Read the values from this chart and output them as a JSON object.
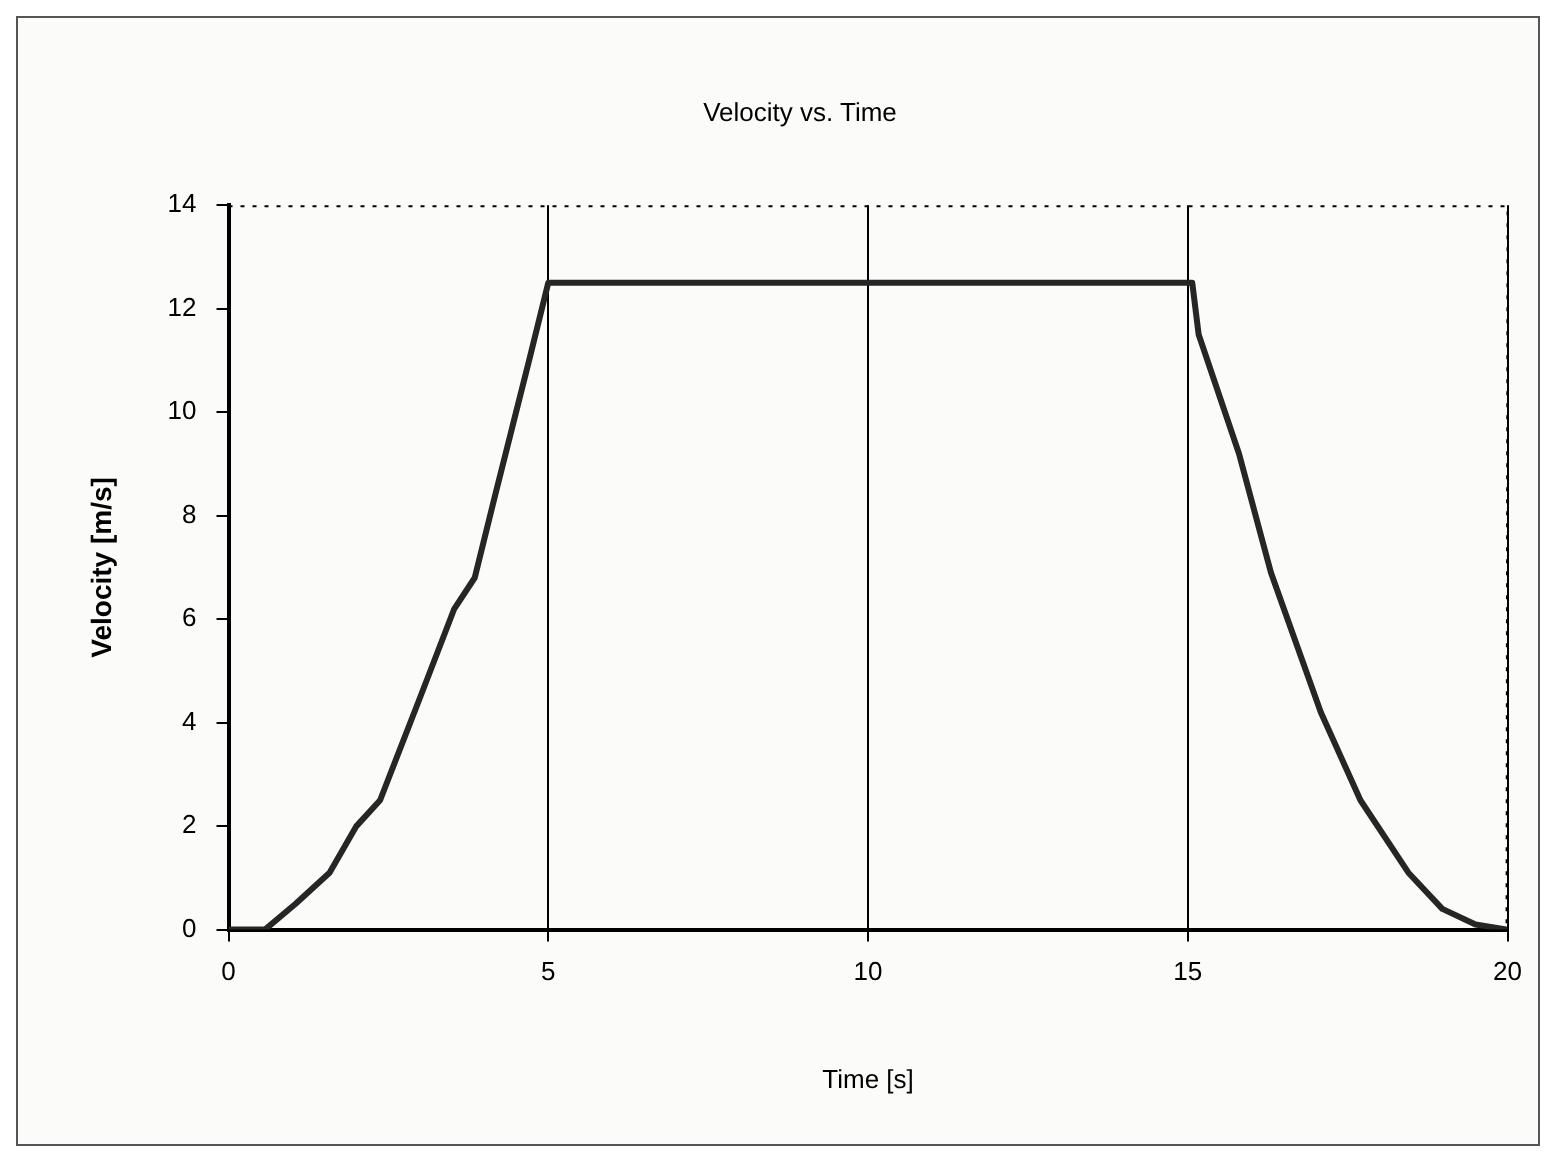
{
  "chart_data": {
    "type": "line",
    "title": "Velocity vs. Time",
    "xlabel": "Time [s]",
    "ylabel": "Velocity [m/s]",
    "x": [
      0,
      0.57,
      1.05,
      1.58,
      2.0,
      2.37,
      3.0,
      3.53,
      3.85,
      4.17,
      4.7,
      5.0,
      15.07,
      15.17,
      15.8,
      16.3,
      17.08,
      17.7,
      18.45,
      18.98,
      19.5,
      20
    ],
    "series": [
      {
        "color": "#262626",
        "values": [
          0,
          0,
          0.5,
          1.1,
          2.0,
          2.5,
          4.5,
          6.2,
          6.8,
          8.4,
          11.0,
          12.5,
          12.5,
          11.5,
          9.2,
          6.9,
          4.2,
          2.5,
          1.1,
          0.4,
          0.1,
          0
        ]
      }
    ],
    "xlim": [
      0,
      20
    ],
    "xticks": [
      0,
      5,
      10,
      15,
      20
    ],
    "ylim": [
      0,
      14
    ],
    "yticks": [
      0,
      2,
      4,
      6,
      8,
      10,
      12,
      14
    ],
    "grid": "x",
    "legend": false,
    "marker": "none",
    "line_style": "solid"
  }
}
